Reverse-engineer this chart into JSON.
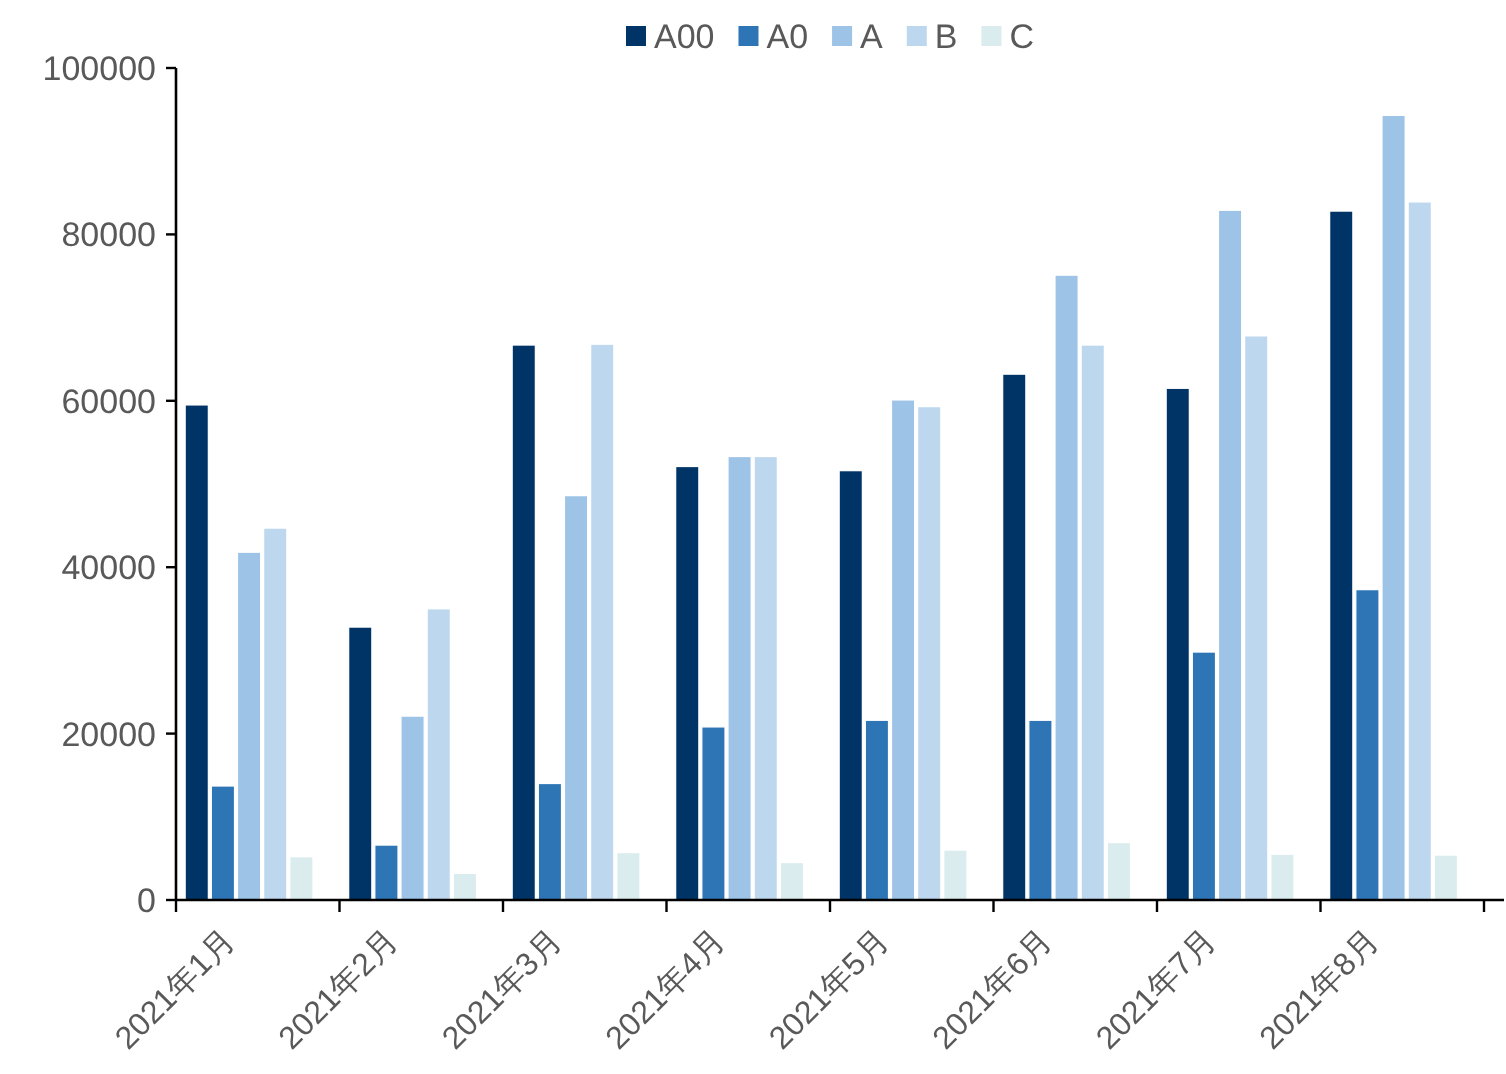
{
  "chart_data": {
    "type": "bar",
    "categories": [
      "2021年1月",
      "2021年2月",
      "2021年3月",
      "2021年4月",
      "2021年5月",
      "2021年6月",
      "2021年7月",
      "2021年8月"
    ],
    "series": [
      {
        "name": "A00",
        "color": "#003366",
        "values": [
          59500,
          32800,
          66700,
          52100,
          51600,
          63200,
          61500,
          82800
        ]
      },
      {
        "name": "A0",
        "color": "#2e75b6",
        "values": [
          13700,
          6600,
          14000,
          20800,
          21600,
          21600,
          29800,
          37300
        ]
      },
      {
        "name": "A",
        "color": "#9dc3e6",
        "values": [
          41800,
          22100,
          48600,
          53300,
          60100,
          75100,
          82900,
          94300
        ]
      },
      {
        "name": "B",
        "color": "#bdd7ee",
        "values": [
          44700,
          35000,
          66800,
          53300,
          59300,
          66700,
          67800,
          83900
        ]
      },
      {
        "name": "C",
        "color": "#daeced",
        "values": [
          5200,
          3200,
          5700,
          4500,
          6000,
          6900,
          5500,
          5400
        ]
      }
    ],
    "ylim": [
      0,
      100000
    ],
    "yticks": [
      0,
      20000,
      40000,
      60000,
      80000,
      100000
    ],
    "grid": false,
    "legend": "top"
  }
}
